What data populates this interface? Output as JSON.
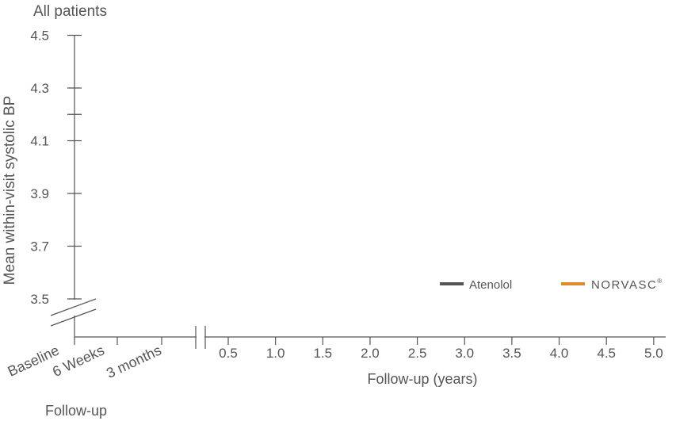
{
  "chart_data": {
    "type": "line",
    "title": "All patients",
    "ylabel": "Mean within-visit systolic BP",
    "xlabel": "Follow-up (years)",
    "early_group_label": "Follow-up",
    "ylim": [
      3.4,
      4.5
    ],
    "y_ticks": [
      3.5,
      3.7,
      3.9,
      4.1,
      4.3,
      4.5
    ],
    "y_tick_labels": [
      "3.5",
      "3.7",
      "3.9",
      "4.1",
      "4.3",
      "4.5"
    ],
    "y_minor_ticks": [
      4.2
    ],
    "early_categories": [
      "Baseline",
      "6 Weeks",
      "3 months"
    ],
    "x_ticks": [
      0.5,
      1.0,
      1.5,
      2.0,
      2.5,
      3.0,
      3.5,
      4.0,
      4.5,
      5.0
    ],
    "x_tick_labels": [
      "0.5",
      "1.0",
      "1.5",
      "2.0",
      "2.5",
      "3.0",
      "3.5",
      "4.0",
      "4.5",
      "5.0"
    ],
    "xlim": [
      0.25,
      5.0
    ],
    "axis_breaks": [
      "y",
      "x"
    ],
    "grid": false,
    "legend_position": "right",
    "series": [
      {
        "name": "Atenolol",
        "color": "#555555",
        "values": []
      },
      {
        "name": "NORVASC",
        "name_mark": "®",
        "color": "#e08a2c",
        "values": []
      }
    ]
  }
}
